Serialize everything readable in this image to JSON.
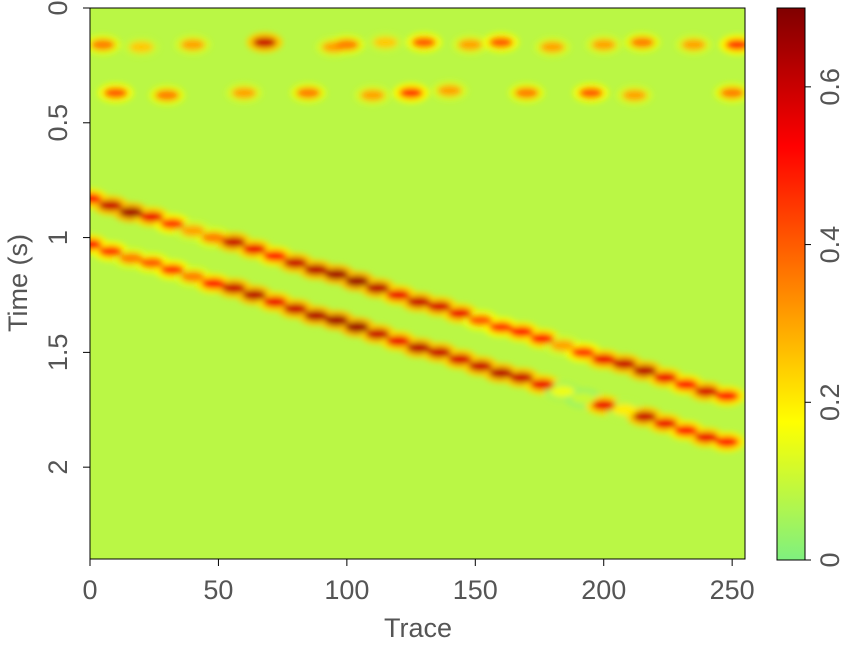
{
  "chart_data": {
    "type": "heatmap",
    "xlabel": "Trace",
    "ylabel": "Time (s)",
    "xlim": [
      0,
      255
    ],
    "ylim": [
      2.4,
      0
    ],
    "clim": [
      0,
      0.7
    ],
    "xticks": [
      0,
      50,
      100,
      150,
      200,
      250
    ],
    "yticks": [
      0,
      0.5,
      1,
      1.5,
      2
    ],
    "cticks": [
      0,
      0.2,
      0.4,
      0.6
    ],
    "colormap": [
      "#7ff07f",
      "#ffff00",
      "#ff8000",
      "#ff0000",
      "#800000"
    ],
    "background_value": 0.08,
    "x": [
      0,
      8,
      16,
      24,
      32,
      40,
      48,
      56,
      64,
      72,
      80,
      88,
      96,
      104,
      112,
      120,
      128,
      136,
      144,
      152,
      160,
      168,
      176,
      184,
      192,
      200,
      208,
      216,
      224,
      232,
      240,
      248,
      0,
      8,
      16,
      24,
      32,
      40,
      48,
      56,
      64,
      72,
      80,
      88,
      96,
      104,
      112,
      120,
      128,
      136,
      144,
      152,
      160,
      168,
      176,
      184,
      192,
      200,
      208,
      216,
      224,
      232,
      240,
      248,
      5,
      20,
      40,
      68,
      95,
      100,
      115,
      130,
      148,
      160,
      180,
      200,
      215,
      235,
      252,
      10,
      30,
      60,
      85,
      110,
      125,
      140,
      170,
      195,
      212,
      250
    ],
    "y": [
      0.83,
      0.86,
      0.89,
      0.91,
      0.94,
      0.97,
      1.0,
      1.02,
      1.05,
      1.08,
      1.11,
      1.14,
      1.16,
      1.19,
      1.22,
      1.25,
      1.28,
      1.3,
      1.33,
      1.36,
      1.39,
      1.41,
      1.44,
      1.47,
      1.5,
      1.53,
      1.55,
      1.58,
      1.61,
      1.64,
      1.67,
      1.69,
      1.03,
      1.06,
      1.09,
      1.11,
      1.14,
      1.17,
      1.2,
      1.22,
      1.25,
      1.28,
      1.31,
      1.34,
      1.36,
      1.39,
      1.42,
      1.45,
      1.48,
      1.5,
      1.53,
      1.56,
      1.59,
      1.61,
      1.64,
      1.67,
      1.7,
      1.73,
      1.75,
      1.78,
      1.81,
      1.84,
      1.87,
      1.89,
      0.16,
      0.17,
      0.16,
      0.15,
      0.17,
      0.16,
      0.15,
      0.15,
      0.16,
      0.15,
      0.17,
      0.16,
      0.15,
      0.16,
      0.16,
      0.37,
      0.38,
      0.37,
      0.37,
      0.38,
      0.37,
      0.36,
      0.37,
      0.37,
      0.38,
      0.37
    ],
    "values": [
      0.5,
      0.6,
      0.65,
      0.55,
      0.45,
      0.3,
      0.35,
      0.6,
      0.55,
      0.5,
      0.6,
      0.62,
      0.65,
      0.66,
      0.62,
      0.55,
      0.6,
      0.58,
      0.55,
      0.4,
      0.45,
      0.5,
      0.5,
      0.3,
      0.45,
      0.55,
      0.6,
      0.62,
      0.55,
      0.5,
      0.58,
      0.5,
      0.5,
      0.45,
      0.35,
      0.4,
      0.45,
      0.35,
      0.5,
      0.6,
      0.62,
      0.55,
      0.6,
      0.63,
      0.65,
      0.66,
      0.6,
      0.55,
      0.62,
      0.6,
      0.58,
      0.6,
      0.62,
      0.6,
      0.55,
      0.15,
      0.1,
      0.55,
      0.2,
      0.6,
      0.55,
      0.5,
      0.55,
      0.5,
      0.35,
      0.25,
      0.3,
      0.6,
      0.3,
      0.35,
      0.25,
      0.4,
      0.3,
      0.4,
      0.3,
      0.3,
      0.35,
      0.3,
      0.45,
      0.4,
      0.35,
      0.3,
      0.35,
      0.3,
      0.45,
      0.3,
      0.35,
      0.4,
      0.3,
      0.35
    ]
  }
}
